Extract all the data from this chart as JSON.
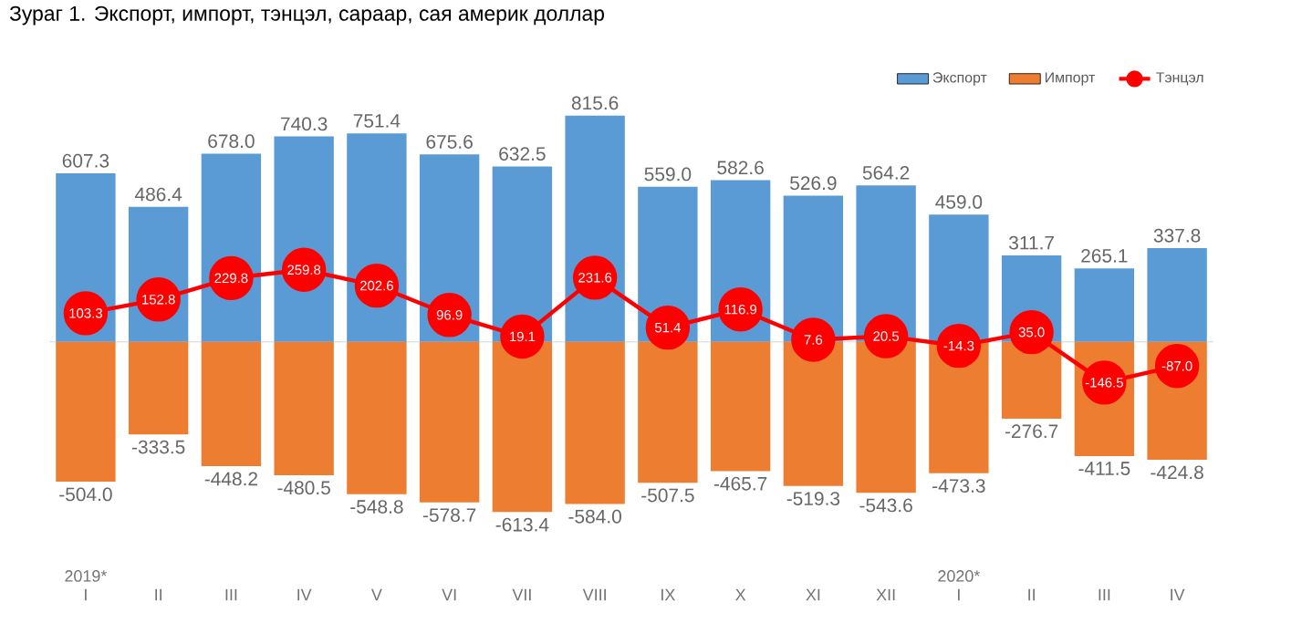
{
  "chart_data": {
    "type": "bar",
    "title": "Зураг 1. Экспорт, импорт, тэнцэл, сараар, сая америк доллар",
    "categories": [
      "I",
      "II",
      "III",
      "IV",
      "V",
      "VI",
      "VII",
      "VIII",
      "IX",
      "X",
      "XI",
      "XII",
      "I",
      "II",
      "III",
      "IV"
    ],
    "series": [
      {
        "name": "Экспорт",
        "color": "#5b9bd5",
        "values": [
          607.3,
          486.4,
          678.0,
          740.3,
          751.4,
          675.6,
          632.5,
          815.6,
          559.0,
          582.6,
          526.9,
          564.2,
          459.0,
          311.7,
          265.1,
          337.8
        ],
        "value_labels": [
          "607.3",
          "486.4",
          "678.0",
          "740.3",
          "751.4",
          "675.6",
          "632.5",
          "815.6",
          "559.0",
          "582.6",
          "526.9",
          "564.2",
          "459.0",
          "311.7",
          "265.1",
          "337.8"
        ]
      },
      {
        "name": "Импорт",
        "color": "#ed7d31",
        "values": [
          -504.0,
          -333.5,
          -448.2,
          -480.5,
          -548.8,
          -578.7,
          -613.4,
          -584.0,
          -507.5,
          -465.7,
          -519.3,
          -543.6,
          -473.3,
          -276.7,
          -411.5,
          -424.8
        ],
        "value_labels": [
          "-504.0",
          "-333.5",
          "-448.2",
          "-480.5",
          "-548.8",
          "-578.7",
          "-613.4",
          "-584.0",
          "-507.5",
          "-465.7",
          "-519.3",
          "-543.6",
          "-473.3",
          "-276.7",
          "-411.5",
          "-424.8"
        ]
      },
      {
        "name": "Тэнцэл",
        "type": "line",
        "color": "#ff0000",
        "marker": "circle",
        "values": [
          103.3,
          152.8,
          229.8,
          259.8,
          202.6,
          96.9,
          19.1,
          231.6,
          51.4,
          116.9,
          7.6,
          20.5,
          -14.3,
          35.0,
          -146.5,
          -87.0
        ],
        "value_labels": [
          "103.3",
          "152.8",
          "229.8",
          "259.8",
          "202.6",
          "96.9",
          "19.1",
          "231.6",
          "51.4",
          "116.9",
          "7.6",
          "20.5",
          "-14.3",
          "35.0",
          "-146.5",
          "-87.0"
        ]
      }
    ],
    "annotations": [
      "2019*",
      "2020*"
    ],
    "stacked": true,
    "tick_labels": "x",
    "legend": "top right"
  }
}
